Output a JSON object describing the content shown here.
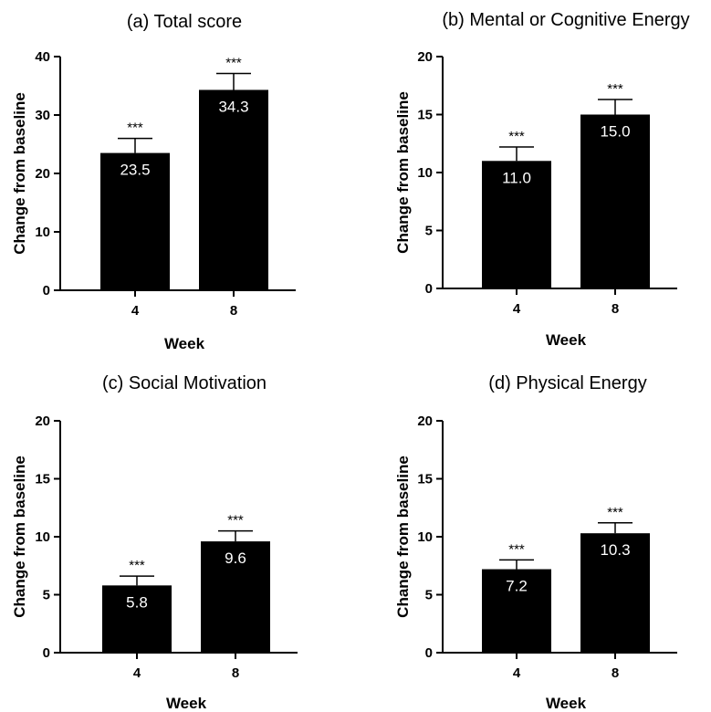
{
  "chart_data": [
    {
      "type": "bar",
      "title": "(a) Total score",
      "xlabel": "Week",
      "ylabel": "Change from baseline",
      "categories": [
        "4",
        "8"
      ],
      "values": [
        23.5,
        34.3
      ],
      "value_labels": [
        "23.5",
        "34.3"
      ],
      "errors": [
        2.5,
        2.8
      ],
      "significance": [
        "***",
        "***"
      ],
      "ylim": [
        0,
        40
      ],
      "yticks": [
        "0",
        "10",
        "20",
        "30",
        "40"
      ],
      "bar_color": "#000000",
      "grid": false
    },
    {
      "type": "bar",
      "title": "(b) Mental or Cognitive Energy",
      "xlabel": "Week",
      "ylabel": "Change from baseline",
      "categories": [
        "4",
        "8"
      ],
      "values": [
        11.0,
        15.0
      ],
      "value_labels": [
        "11.0",
        "15.0"
      ],
      "errors": [
        1.2,
        1.3
      ],
      "significance": [
        "***",
        "***"
      ],
      "ylim": [
        0,
        20
      ],
      "yticks": [
        "0",
        "5",
        "10",
        "15",
        "20"
      ],
      "bar_color": "#000000",
      "grid": false
    },
    {
      "type": "bar",
      "title": "(c) Social Motivation",
      "xlabel": "Week",
      "ylabel": "Change from baseline",
      "categories": [
        "4",
        "8"
      ],
      "values": [
        5.8,
        9.6
      ],
      "value_labels": [
        "5.8",
        "9.6"
      ],
      "errors": [
        0.8,
        0.9
      ],
      "significance": [
        "***",
        "***"
      ],
      "ylim": [
        0,
        20
      ],
      "yticks": [
        "0",
        "5",
        "10",
        "15",
        "20"
      ],
      "bar_color": "#000000",
      "grid": false
    },
    {
      "type": "bar",
      "title": "(d) Physical Energy",
      "xlabel": "Week",
      "ylabel": "Change from baseline",
      "categories": [
        "4",
        "8"
      ],
      "values": [
        7.2,
        10.3
      ],
      "value_labels": [
        "7.2",
        "10.3"
      ],
      "errors": [
        0.8,
        0.9
      ],
      "significance": [
        "***",
        "***"
      ],
      "ylim": [
        0,
        20
      ],
      "yticks": [
        "0",
        "5",
        "10",
        "15",
        "20"
      ],
      "bar_color": "#000000",
      "grid": false
    }
  ]
}
